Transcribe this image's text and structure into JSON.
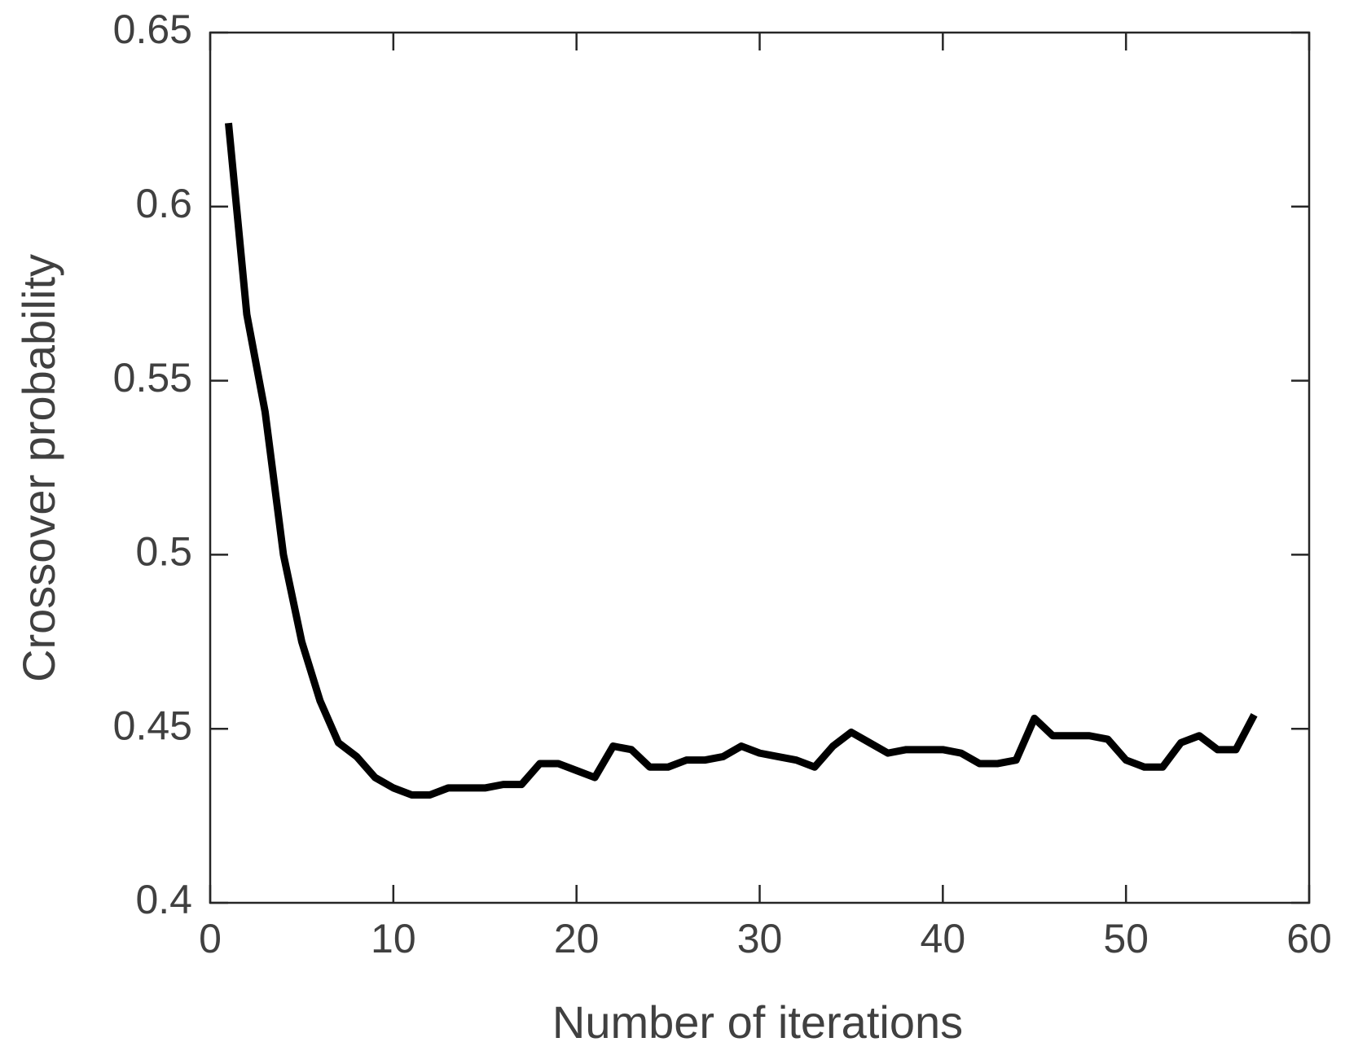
{
  "chart_data": {
    "type": "line",
    "xlabel": "Number of iterations",
    "ylabel": "Crossover probability",
    "x": [
      1,
      2,
      3,
      4,
      5,
      6,
      7,
      8,
      9,
      10,
      11,
      12,
      13,
      14,
      15,
      16,
      17,
      18,
      19,
      20,
      21,
      22,
      23,
      24,
      25,
      26,
      27,
      28,
      29,
      30,
      31,
      32,
      33,
      34,
      35,
      36,
      37,
      38,
      39,
      40,
      41,
      42,
      43,
      44,
      45,
      46,
      47,
      48,
      49,
      50,
      51,
      52,
      53,
      54,
      55,
      56,
      57
    ],
    "series": [
      {
        "color": "#000000",
        "values": [
          0.624,
          0.569,
          0.541,
          0.5,
          0.475,
          0.458,
          0.446,
          0.442,
          0.436,
          0.433,
          0.431,
          0.431,
          0.433,
          0.433,
          0.433,
          0.434,
          0.434,
          0.44,
          0.44,
          0.438,
          0.436,
          0.445,
          0.444,
          0.439,
          0.439,
          0.441,
          0.441,
          0.442,
          0.445,
          0.443,
          0.442,
          0.441,
          0.439,
          0.445,
          0.449,
          0.446,
          0.443,
          0.444,
          0.444,
          0.444,
          0.443,
          0.44,
          0.44,
          0.441,
          0.453,
          0.448,
          0.448,
          0.448,
          0.447,
          0.441,
          0.439,
          0.439,
          0.446,
          0.448,
          0.444,
          0.444,
          0.454
        ]
      }
    ],
    "xlim": [
      0,
      60
    ],
    "xticks": [
      0,
      10,
      20,
      30,
      40,
      50,
      60
    ],
    "ylim": [
      0.4,
      0.65
    ],
    "yticks": [
      0.4,
      0.45,
      0.5,
      0.55,
      0.6,
      0.65
    ]
  }
}
